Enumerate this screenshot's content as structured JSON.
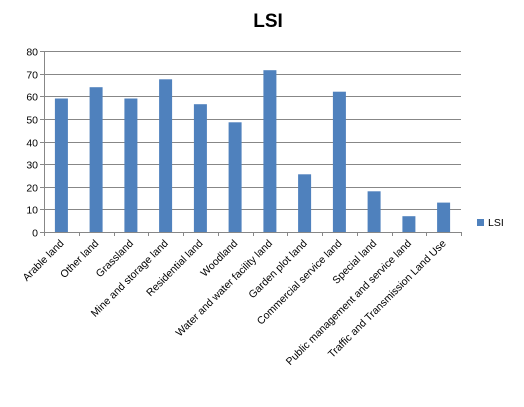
{
  "chart_data": {
    "type": "bar",
    "title": "LSI",
    "categories": [
      "Arable land",
      "Other land",
      "Grassland",
      "Mine and storage land",
      "Residential land",
      "Woodland",
      "Water and water facility land",
      "Garden plot land",
      "Commercial service land",
      "Special land",
      "Public management and service land",
      "Traffic and Transmission Land Use"
    ],
    "series": [
      {
        "name": "LSI",
        "color": "#4f81bd",
        "values": [
          59,
          64,
          59,
          67.5,
          56.5,
          48.5,
          71.5,
          25.5,
          62,
          18,
          7,
          13
        ]
      }
    ],
    "ylim": [
      0,
      80
    ],
    "yticks": [
      0,
      10,
      20,
      30,
      40,
      50,
      60,
      70,
      80
    ],
    "grid": true,
    "legend": "right"
  }
}
